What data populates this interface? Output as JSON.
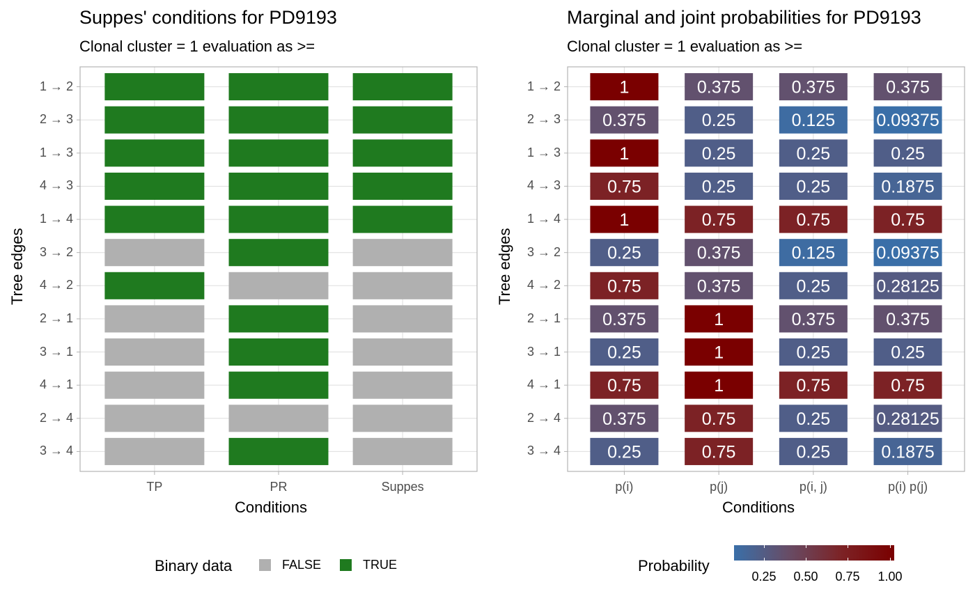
{
  "chart_data": [
    {
      "type": "heatmap",
      "title": "Suppes' conditions for PD9193",
      "subtitle": "Clonal cluster =  1 evaluation as >=",
      "xlabel": "Conditions",
      "ylabel": "Tree edges",
      "categories_x": [
        "TP",
        "PR",
        "Suppes"
      ],
      "categories_y": [
        "1 → 2",
        "2 → 3",
        "1 → 3",
        "4 → 3",
        "1 → 4",
        "3 → 2",
        "4 → 2",
        "2 → 1",
        "3 → 1",
        "4 → 1",
        "2 → 4",
        "3 → 4"
      ],
      "values": [
        [
          true,
          true,
          true
        ],
        [
          true,
          true,
          true
        ],
        [
          true,
          true,
          true
        ],
        [
          true,
          true,
          true
        ],
        [
          true,
          true,
          true
        ],
        [
          false,
          true,
          false
        ],
        [
          true,
          false,
          false
        ],
        [
          false,
          true,
          false
        ],
        [
          false,
          true,
          false
        ],
        [
          false,
          true,
          false
        ],
        [
          false,
          false,
          false
        ],
        [
          false,
          true,
          false
        ]
      ],
      "grid": true,
      "legend": {
        "title": "Binary data",
        "position": "bottom",
        "entries": [
          {
            "label": "FALSE",
            "color": "#b0b0b0"
          },
          {
            "label": "TRUE",
            "color": "#1f7a1f"
          }
        ]
      }
    },
    {
      "type": "heatmap",
      "title": "Marginal and joint probabilities for PD9193",
      "subtitle": "Clonal cluster =  1 evaluation as >=",
      "xlabel": "Conditions",
      "ylabel": "Tree edges",
      "categories_x": [
        "p(i)",
        "p(j)",
        "p(i, j)",
        "p(i) p(j)"
      ],
      "categories_y": [
        "1 → 2",
        "2 → 3",
        "1 → 3",
        "4 → 3",
        "1 → 4",
        "3 → 2",
        "4 → 2",
        "2 → 1",
        "3 → 1",
        "4 → 1",
        "2 → 4",
        "3 → 4"
      ],
      "values": [
        [
          1,
          0.375,
          0.375,
          0.375
        ],
        [
          0.375,
          0.25,
          0.125,
          0.09375
        ],
        [
          1,
          0.25,
          0.25,
          0.25
        ],
        [
          0.75,
          0.25,
          0.25,
          0.1875
        ],
        [
          1,
          0.75,
          0.75,
          0.75
        ],
        [
          0.25,
          0.375,
          0.125,
          0.09375
        ],
        [
          0.75,
          0.375,
          0.25,
          0.28125
        ],
        [
          0.375,
          1,
          0.375,
          0.375
        ],
        [
          0.25,
          1,
          0.25,
          0.25
        ],
        [
          0.75,
          1,
          0.75,
          0.75
        ],
        [
          0.375,
          0.75,
          0.25,
          0.28125
        ],
        [
          0.25,
          0.75,
          0.25,
          0.1875
        ]
      ],
      "grid": true,
      "legend": {
        "title": "Probability",
        "position": "bottom",
        "type": "colorbar",
        "range": [
          0.09375,
          1
        ],
        "ticks": [
          "0.25",
          "0.50",
          "0.75",
          "1.00"
        ],
        "low_color": "#3a6fa8",
        "high_color": "#7a0000"
      }
    }
  ]
}
